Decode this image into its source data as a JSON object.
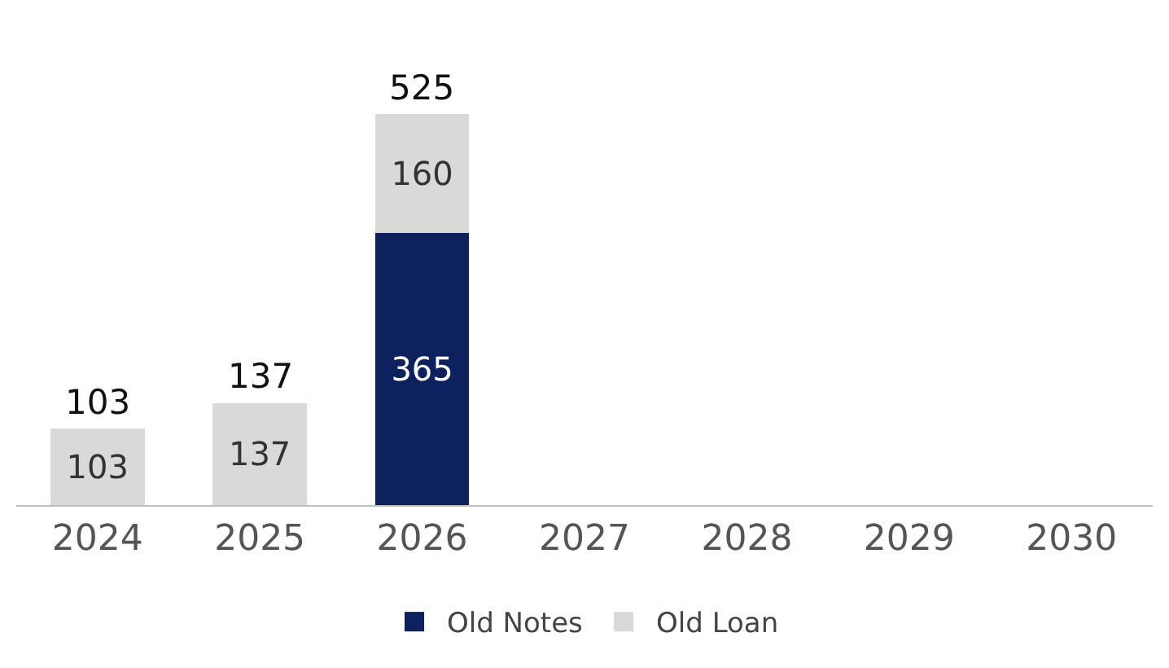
{
  "chart_data": {
    "type": "bar",
    "stacked": true,
    "data_labels": true,
    "legend": "bottom",
    "grid": false,
    "categories": [
      "2024",
      "2025",
      "2026",
      "2027",
      "2028",
      "2029",
      "2030"
    ],
    "series": [
      {
        "name": "Old Notes",
        "color": "#0c215e",
        "values": [
          null,
          null,
          365,
          null,
          null,
          null,
          null
        ]
      },
      {
        "name": "Old Loan",
        "color": "#d9d9d9",
        "values": [
          103,
          137,
          160,
          null,
          null,
          null,
          null
        ]
      }
    ],
    "totals": [
      "103",
      "137",
      "525",
      null,
      null,
      null,
      null
    ]
  }
}
